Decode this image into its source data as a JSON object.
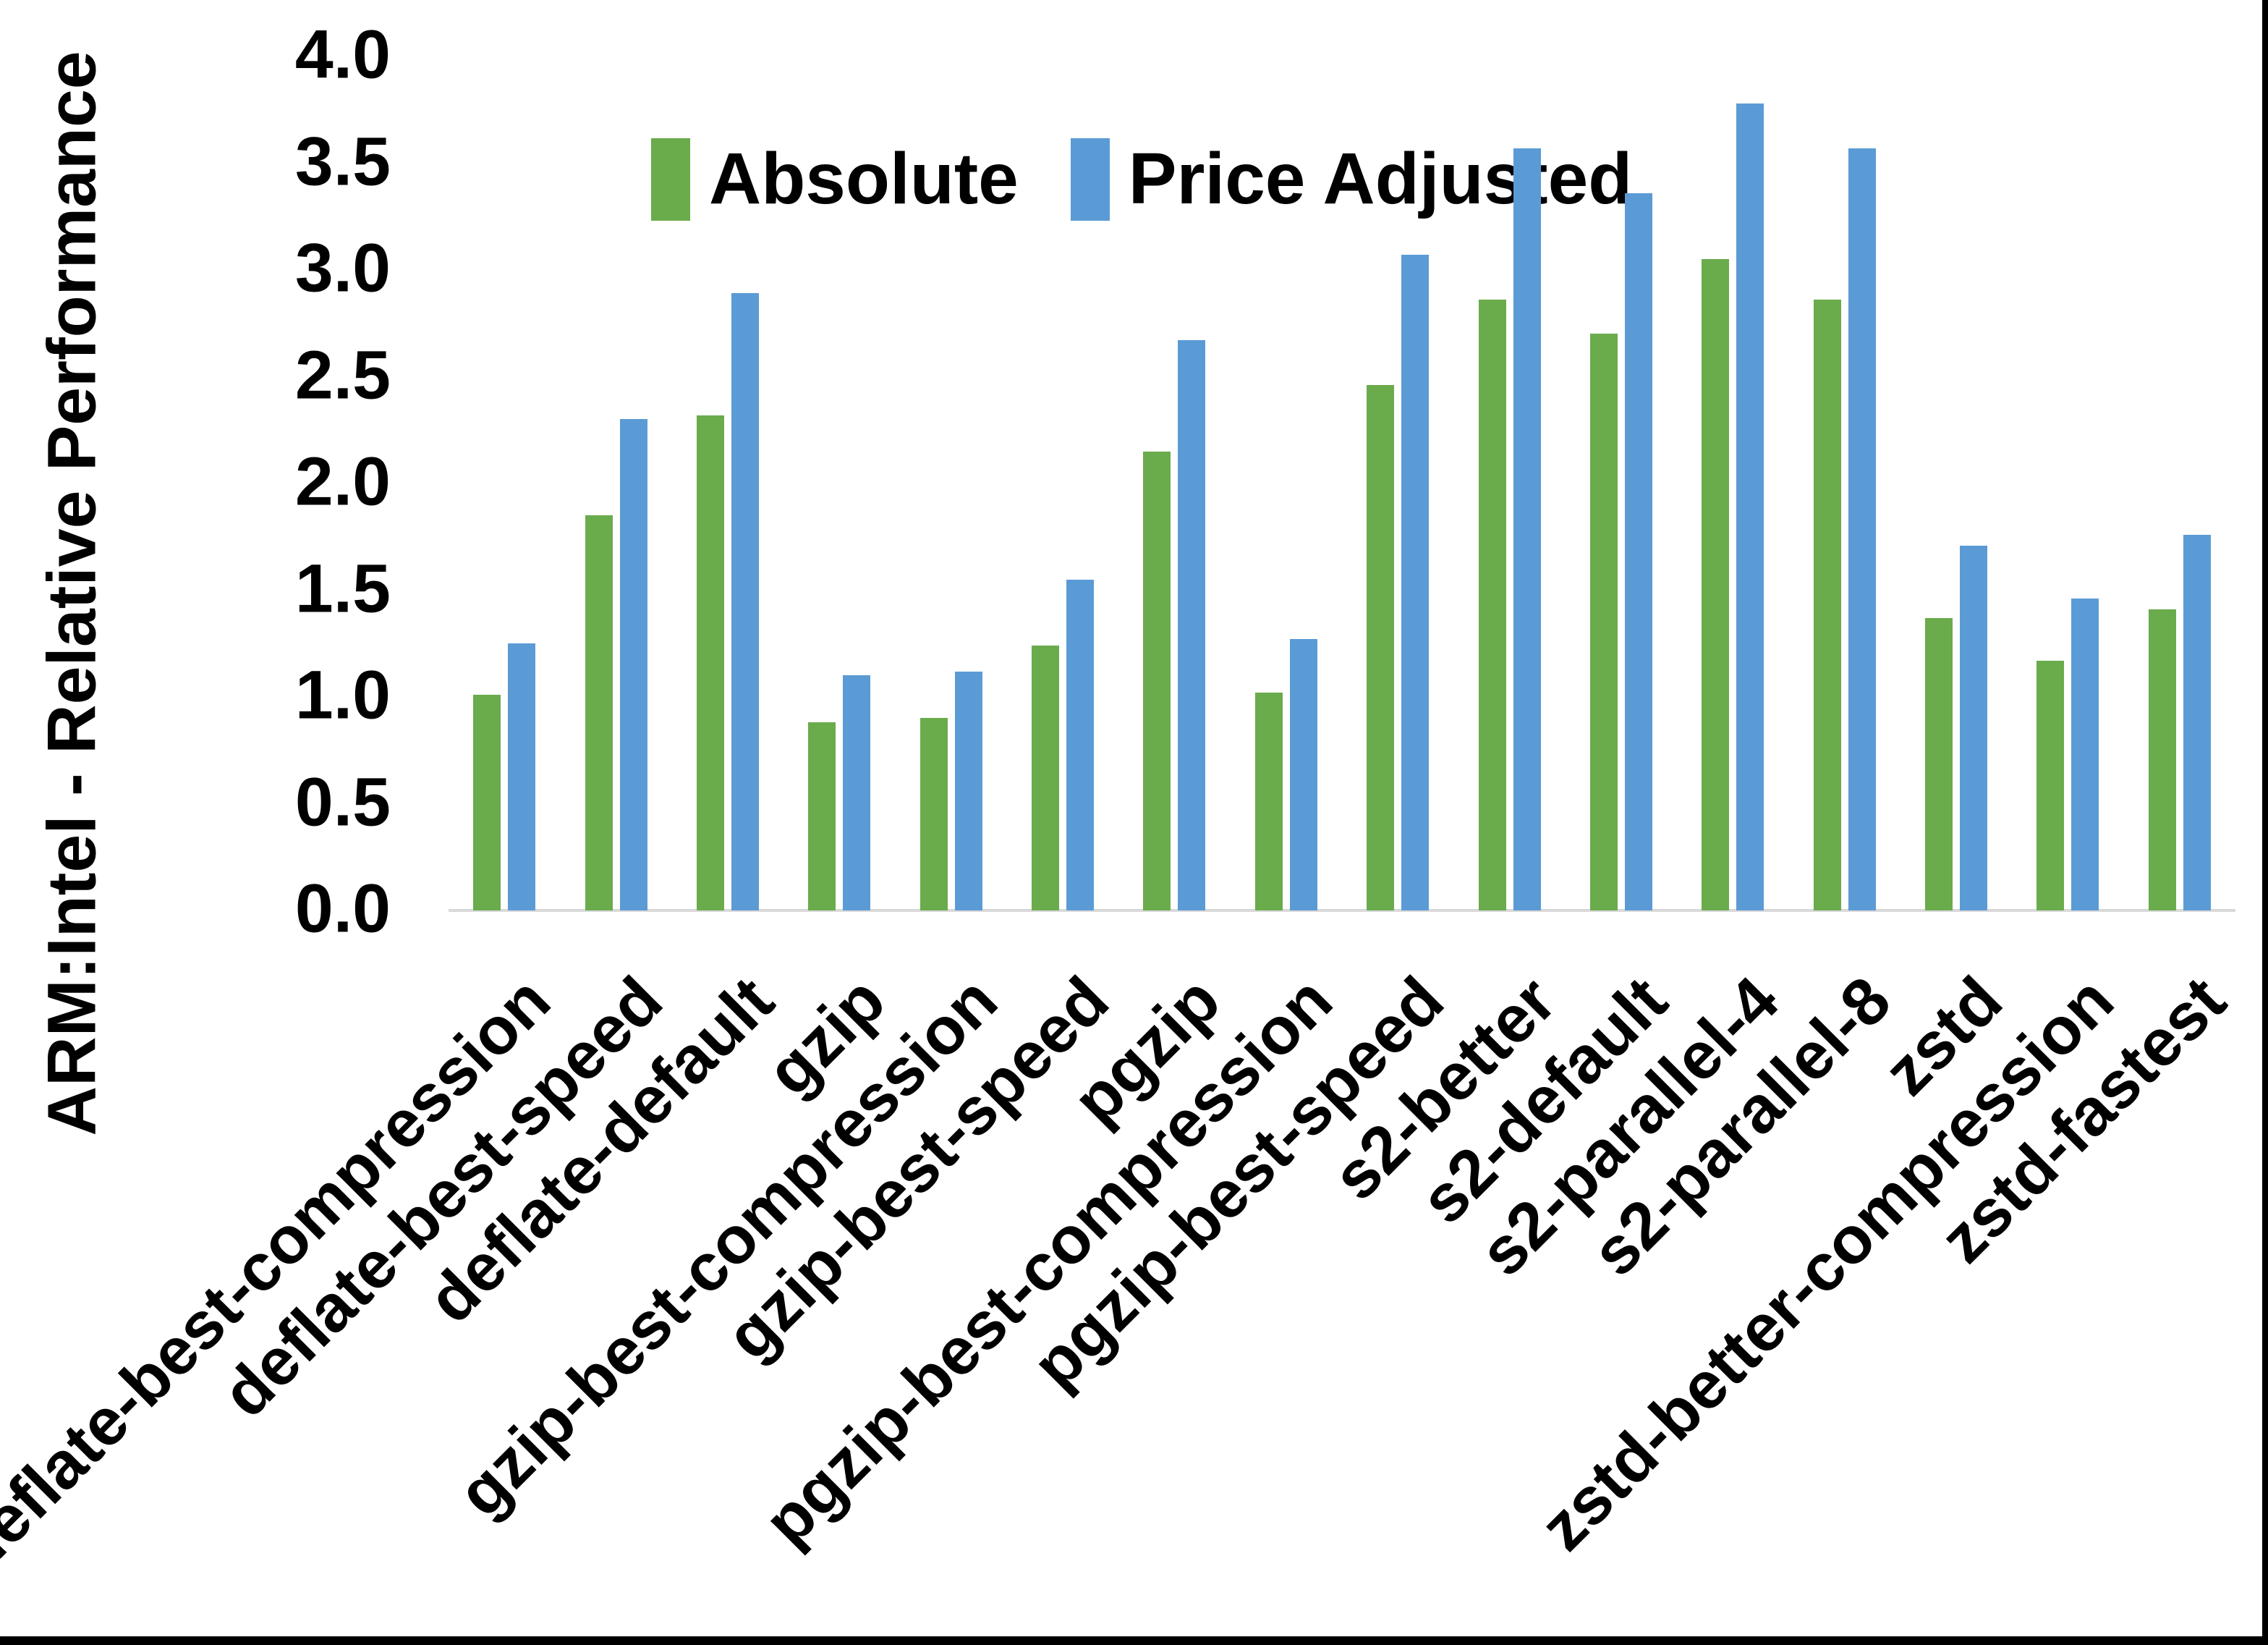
{
  "chart_data": {
    "type": "bar",
    "title": "",
    "ylabel": "ARM:Intel - Relative Performance",
    "xlabel": "",
    "ylim": [
      0.0,
      4.0
    ],
    "ytick_step": 0.5,
    "ytick_labels": [
      "0.0",
      "0.5",
      "1.0",
      "1.5",
      "2.0",
      "2.5",
      "3.0",
      "3.5",
      "4.0"
    ],
    "grid": false,
    "legend_position": "top",
    "categories": [
      "deflate-best-compression",
      "deflate-best-speed",
      "deflate-default",
      "gzip",
      "gzip-best-compression",
      "gzip-best-speed",
      "pgzip",
      "pgzip-best-compression",
      "pgzip-best-speed",
      "s2-better",
      "s2-default",
      "s2-parallel-4",
      "s2-parallel-8",
      "zstd",
      "zstd-better-compression",
      "zstd-fastest"
    ],
    "series": [
      {
        "name": "Absolute",
        "color": "#6aab4c",
        "values": [
          1.01,
          1.85,
          2.32,
          0.88,
          0.9,
          1.24,
          2.15,
          1.02,
          2.46,
          2.86,
          2.7,
          3.05,
          2.86,
          1.37,
          1.17,
          1.41
        ]
      },
      {
        "name": "Price Adjusted",
        "color": "#5b9bd5",
        "values": [
          1.25,
          2.3,
          2.89,
          1.1,
          1.12,
          1.55,
          2.67,
          1.27,
          3.07,
          3.57,
          3.36,
          3.78,
          3.57,
          1.71,
          1.46,
          1.76
        ]
      }
    ],
    "axis_line_color": "#d9d9d9",
    "frame_border_color": "#000000"
  }
}
